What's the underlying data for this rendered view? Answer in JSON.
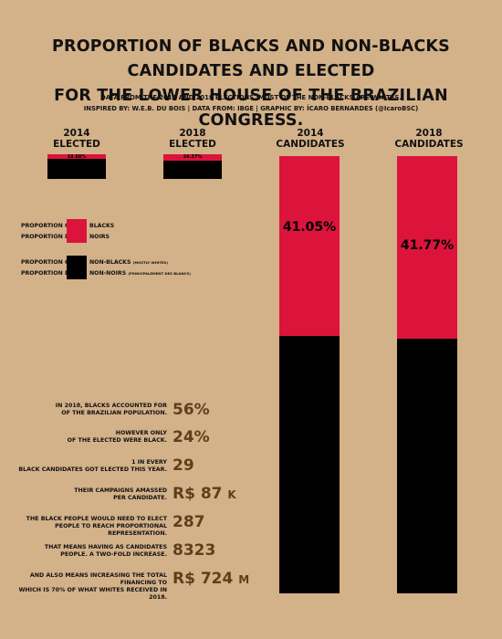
{
  "header": {
    "title_line1": "PROPORTION OF BLACKS AND NON-BLACKS CANDIDATES AND ELECTED",
    "title_line2": "FOR THE LOWER HOUSE OF THE BRAZILIAN CONGRESS.",
    "subtitle_line1": "DATA FROM THE 2014 AND 2018 ELECTIONS. MOST OF THE NON-BLACKS ARE WHITES.",
    "subtitle_line2": "INSPIRED BY: W.E.B. DU BOIS | DATA FROM: IBGE | GRAPHIC BY: ÍCARO BERNARDES (@IcaroBSC)"
  },
  "chart_data": {
    "type": "bar",
    "categories": [
      "2014 ELECTED",
      "2018 ELECTED",
      "2014 CANDIDATES",
      "2018 CANDIDATES"
    ],
    "category_labels": [
      {
        "year": "2014",
        "group": "ELECTED"
      },
      {
        "year": "2018",
        "group": "ELECTED"
      },
      {
        "year": "2014",
        "group": "CANDIDATES"
      },
      {
        "year": "2018",
        "group": "CANDIDATES"
      }
    ],
    "series": [
      {
        "name": "BLACKS",
        "values": [
          19.88,
          24.37,
          41.05,
          41.77
        ]
      },
      {
        "name": "NON-BLACKS",
        "values": [
          80.12,
          75.63,
          58.95,
          58.23
        ]
      }
    ],
    "data_labels": [
      "19.88%",
      "24.37%",
      "41.05%",
      "41.77%"
    ],
    "colors": {
      "blacks": "#dc143c",
      "non_blacks": "#000000"
    }
  },
  "legend": {
    "items": [
      {
        "prefix_en": "PROPORTION OF",
        "prefix_fr": "PROPORTION DE",
        "label_en": "BLACKS",
        "label_fr": "NOIRS",
        "note_en": "",
        "note_fr": "",
        "color": "#dc143c"
      },
      {
        "prefix_en": "PROPORTION OF",
        "prefix_fr": "PROPORTION DE",
        "label_en": "NON-BLACKS",
        "label_fr": "NON-NOIRS",
        "note_en": "(MOSTLY WHITES)",
        "note_fr": "(PRINCIPALEMENT DES BLANCS)",
        "color": "#000000"
      }
    ]
  },
  "stats": [
    {
      "line1": "IN 2018, BLACKS ACCOUNTED FOR",
      "line2": "OF THE BRAZILIAN POPULATION.",
      "value": "56%",
      "unit": ""
    },
    {
      "line1": "HOWEVER ONLY",
      "line2": "OF THE ELECTED WERE BLACK.",
      "value": "24%",
      "unit": ""
    },
    {
      "line1": "1 IN EVERY",
      "line2": "BLACK CANDIDATES GOT ELECTED THIS YEAR.",
      "value": "29",
      "unit": ""
    },
    {
      "line1": "THEIR CAMPAIGNS AMASSED",
      "line2": "PER CANDIDATE.",
      "value": "R$ 87",
      "unit": "K"
    },
    {
      "line1": "THE BLACK PEOPLE WOULD NEED TO ELECT",
      "line2": "PEOPLE TO REACH PROPORTIONAL REPRESENTATION.",
      "value": "287",
      "unit": ""
    },
    {
      "line1": "THAT MEANS HAVING AS CANDIDATES",
      "line2": "PEOPLE. A TWO-FOLD INCREASE.",
      "value": "8323",
      "unit": ""
    },
    {
      "line1": "AND ALSO MEANS INCREASING THE TOTAL FINANCING TO",
      "line2": "WHICH IS 70% OF WHAT WHITES RECEIVED IN 2018.",
      "value": "R$ 724",
      "unit": "M"
    }
  ]
}
